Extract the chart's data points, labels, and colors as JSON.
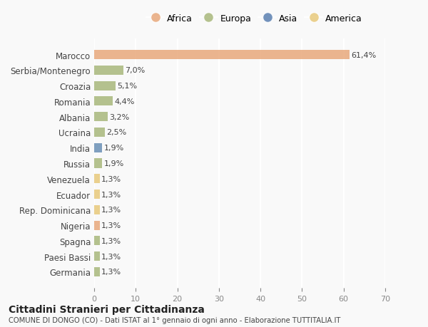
{
  "categories": [
    "Marocco",
    "Serbia/Montenegro",
    "Croazia",
    "Romania",
    "Albania",
    "Ucraina",
    "India",
    "Russia",
    "Venezuela",
    "Ecuador",
    "Rep. Dominicana",
    "Nigeria",
    "Spagna",
    "Paesi Bassi",
    "Germania"
  ],
  "values": [
    61.4,
    7.0,
    5.1,
    4.4,
    3.2,
    2.5,
    1.9,
    1.9,
    1.3,
    1.3,
    1.3,
    1.3,
    1.3,
    1.3,
    1.3
  ],
  "labels": [
    "61,4%",
    "7,0%",
    "5,1%",
    "4,4%",
    "3,2%",
    "2,5%",
    "1,9%",
    "1,9%",
    "1,3%",
    "1,3%",
    "1,3%",
    "1,3%",
    "1,3%",
    "1,3%",
    "1,3%"
  ],
  "continent": [
    "Africa",
    "Europa",
    "Europa",
    "Europa",
    "Europa",
    "Europa",
    "Asia",
    "Europa",
    "America",
    "America",
    "America",
    "Africa",
    "Europa",
    "Europa",
    "Europa"
  ],
  "colors": {
    "Africa": "#E8A87C",
    "Europa": "#A8B87C",
    "Asia": "#6A8FB5",
    "America": "#E8C97C"
  },
  "legend_colors": {
    "Africa": "#E8A87C",
    "Europa": "#A8B87C",
    "Asia": "#5A7FB0",
    "America": "#E8C97C"
  },
  "xlim": [
    0,
    70
  ],
  "xticks": [
    0,
    10,
    20,
    30,
    40,
    50,
    60,
    70
  ],
  "title": "Cittadini Stranieri per Cittadinanza",
  "subtitle": "COMUNE DI DONGO (CO) - Dati ISTAT al 1° gennaio di ogni anno - Elaborazione TUTTITALIA.IT",
  "bg_color": "#f9f9f9",
  "grid_color": "#ffffff",
  "bar_height": 0.6
}
